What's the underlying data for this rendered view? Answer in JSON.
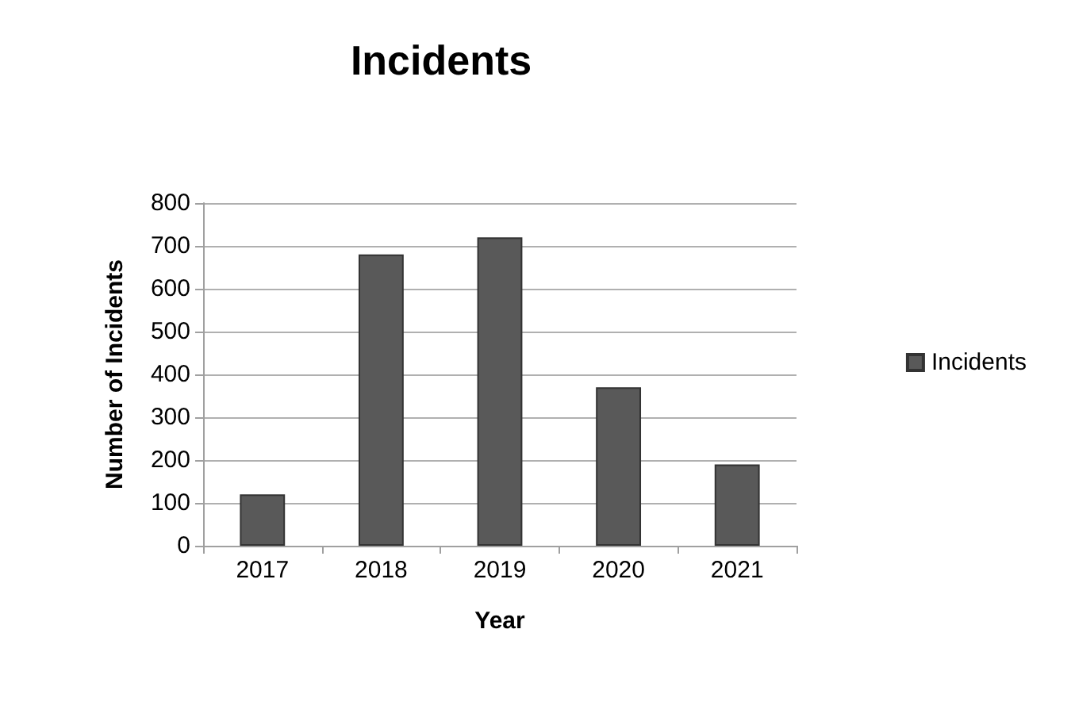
{
  "chart_data": {
    "type": "bar",
    "title": "Incidents",
    "xlabel": "Year",
    "ylabel": "Number of Incidents",
    "categories": [
      "2017",
      "2018",
      "2019",
      "2020",
      "2021"
    ],
    "series": [
      {
        "name": "Incidents",
        "color": "#595959",
        "values": [
          120,
          680,
          720,
          370,
          190
        ]
      }
    ],
    "ylim": [
      0,
      800
    ],
    "yticks": [
      0,
      100,
      200,
      300,
      400,
      500,
      600,
      700,
      800
    ],
    "grid": "y",
    "legend": "right"
  }
}
